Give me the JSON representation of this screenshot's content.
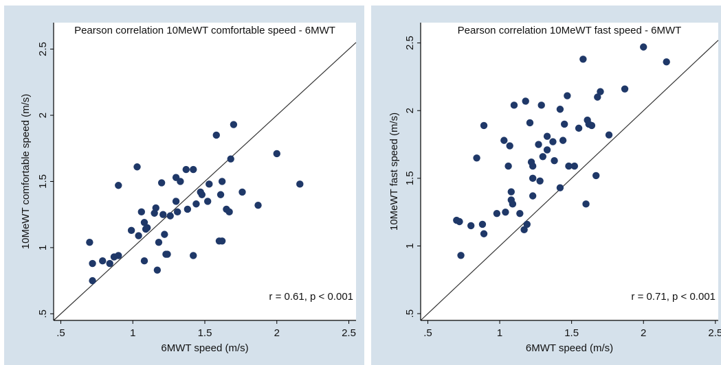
{
  "chart_data": [
    {
      "type": "scatter",
      "title": "Pearson correlation 10MeWT comfortable speed - 6MWT",
      "x_label": "6MWT speed (m/s)",
      "y_label": "10MeWT comfortable speed (m/s)",
      "annotation": "r = 0.61, p < 0.001",
      "color": "#1f3868",
      "x": [
        0.7,
        0.72,
        0.72,
        0.79,
        0.84,
        0.87,
        0.9,
        0.9,
        0.99,
        1.03,
        1.04,
        1.06,
        1.08,
        1.09,
        1.08,
        1.1,
        1.15,
        1.16,
        1.17,
        1.18,
        1.2,
        1.21,
        1.22,
        1.23,
        1.24,
        1.26,
        1.3,
        1.3,
        1.33,
        1.31,
        1.37,
        1.38,
        1.42,
        1.42,
        1.44,
        1.47,
        1.48,
        1.52,
        1.53,
        1.58,
        1.6,
        1.62,
        1.61,
        1.62,
        1.65,
        1.67,
        1.68,
        1.7,
        1.76,
        1.87,
        2.0,
        2.16
      ],
      "values": [
        1.04,
        0.88,
        0.75,
        0.9,
        0.88,
        0.93,
        0.94,
        1.47,
        1.13,
        1.61,
        1.09,
        1.27,
        1.19,
        1.14,
        0.9,
        1.15,
        1.26,
        1.3,
        0.83,
        1.04,
        1.49,
        1.25,
        1.1,
        0.95,
        0.95,
        1.24,
        1.35,
        1.53,
        1.5,
        1.27,
        1.59,
        1.29,
        1.59,
        0.94,
        1.33,
        1.42,
        1.4,
        1.35,
        1.48,
        1.85,
        1.05,
        1.05,
        1.4,
        1.5,
        1.29,
        1.27,
        1.67,
        1.93,
        1.42,
        1.32,
        1.71,
        1.48
      ],
      "xlim": [
        0.45,
        2.55
      ],
      "ylim": [
        0.45,
        2.7
      ],
      "xticks": [
        {
          "value": 0.5,
          "label": ".5"
        },
        1,
        1.5,
        2,
        2.5
      ],
      "yticks": [
        {
          "value": 0.5,
          "label": ".5"
        },
        1,
        1.5,
        2,
        2.5
      ]
    },
    {
      "type": "scatter",
      "title": "Pearson correlation 10MeWT fast speed - 6MWT",
      "x_label": "6MWT speed (m/s)",
      "y_label": "10MeWT fast speed (m/s)",
      "annotation": "r = 0.71, p < 0.001",
      "color": "#1f3868",
      "x": [
        0.7,
        0.72,
        0.73,
        0.8,
        0.84,
        0.88,
        0.89,
        0.89,
        0.98,
        1.03,
        1.04,
        1.06,
        1.07,
        1.08,
        1.08,
        1.09,
        1.1,
        1.14,
        1.17,
        1.18,
        1.19,
        1.21,
        1.22,
        1.23,
        1.23,
        1.23,
        1.27,
        1.28,
        1.29,
        1.3,
        1.33,
        1.33,
        1.37,
        1.38,
        1.42,
        1.42,
        1.44,
        1.45,
        1.47,
        1.48,
        1.52,
        1.55,
        1.58,
        1.6,
        1.61,
        1.62,
        1.64,
        1.67,
        1.68,
        1.7,
        1.76,
        1.87,
        2.0,
        2.16
      ],
      "values": [
        1.19,
        1.18,
        0.93,
        1.15,
        1.65,
        1.16,
        1.09,
        1.89,
        1.24,
        1.78,
        1.25,
        1.59,
        1.74,
        1.4,
        1.34,
        1.31,
        2.04,
        1.24,
        1.12,
        2.07,
        1.16,
        1.91,
        1.62,
        1.59,
        1.5,
        1.37,
        1.75,
        1.48,
        2.04,
        1.66,
        1.81,
        1.71,
        1.77,
        1.63,
        2.01,
        1.43,
        1.78,
        1.9,
        2.11,
        1.59,
        1.59,
        1.87,
        2.38,
        1.31,
        1.93,
        1.9,
        1.89,
        1.52,
        2.1,
        2.14,
        1.82,
        2.16,
        2.47,
        2.36
      ],
      "xlim": [
        0.45,
        2.52
      ],
      "ylim": [
        0.45,
        2.65
      ],
      "xticks": [
        {
          "value": 0.5,
          "label": ".5"
        },
        1,
        1.5,
        2,
        2.5
      ],
      "yticks": [
        {
          "value": 0.5,
          "label": ".5"
        },
        1,
        1.5,
        2,
        2.5
      ]
    }
  ]
}
